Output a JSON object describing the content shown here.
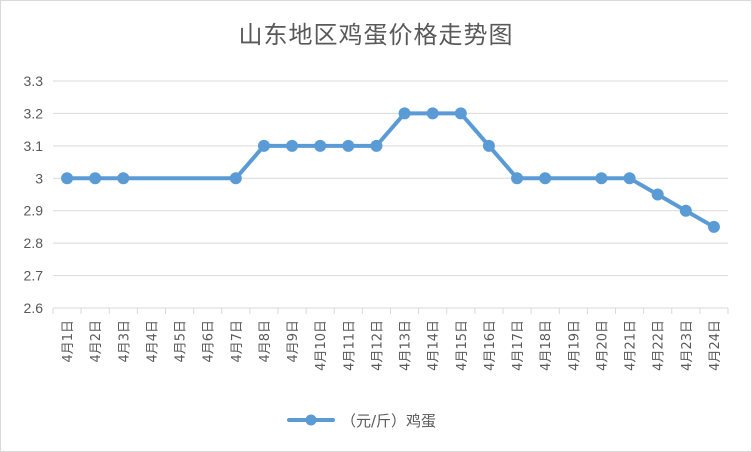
{
  "chart_data": {
    "type": "line",
    "title": "山东地区鸡蛋价格走势图",
    "categories": [
      "4月1日",
      "4月2日",
      "4月3日",
      "4月4日",
      "4月5日",
      "4月6日",
      "4月7日",
      "4月8日",
      "4月9日",
      "4月10日",
      "4月11日",
      "4月12日",
      "4月13日",
      "4月14日",
      "4月15日",
      "4月16日",
      "4月17日",
      "4月18日",
      "4月19日",
      "4月20日",
      "4月21日",
      "4月22日",
      "4月23日",
      "4月24日"
    ],
    "series": [
      {
        "name": "（元/斤）鸡蛋",
        "values": [
          3.0,
          3.0,
          3.0,
          null,
          null,
          null,
          3.0,
          3.1,
          3.1,
          3.1,
          3.1,
          3.1,
          3.2,
          3.2,
          3.2,
          3.1,
          3.0,
          3.0,
          null,
          3.0,
          3.0,
          2.95,
          2.9,
          2.85
        ],
        "color": "#5b9bd5"
      }
    ],
    "yticks": [
      "2.6",
      "2.7",
      "2.8",
      "2.9",
      "3",
      "3.1",
      "3.2",
      "3.3"
    ],
    "ylim": [
      2.6,
      3.3
    ],
    "grid": true,
    "legend": "bottom",
    "xlabel": "",
    "ylabel": ""
  }
}
